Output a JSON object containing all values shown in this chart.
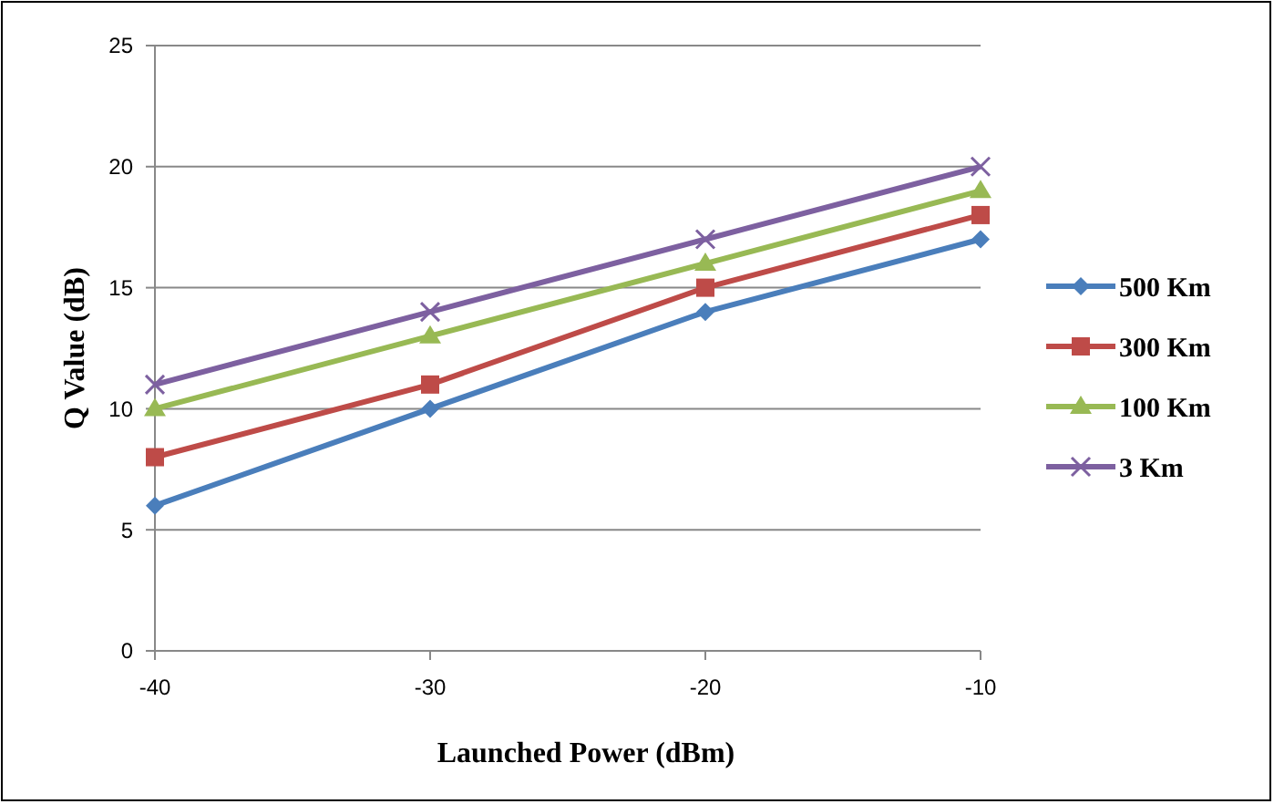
{
  "chart_data": {
    "type": "line",
    "xlabel": "Launched Power (dBm)",
    "ylabel": "Q Value (dB)",
    "x": [
      -40,
      -30,
      -20,
      -10
    ],
    "xlim": [
      -40,
      -10
    ],
    "xticks": [
      -40,
      -30,
      -20,
      -10
    ],
    "ylim": [
      0,
      25
    ],
    "yticks": [
      0,
      5,
      10,
      15,
      20,
      25
    ],
    "grid": "y",
    "legend": "right",
    "series": [
      {
        "name": "500 Km",
        "color": "#4a7ebb",
        "marker": "diamond",
        "values": [
          6,
          10,
          14,
          17
        ]
      },
      {
        "name": "300 Km",
        "color": "#be4b48",
        "marker": "square",
        "values": [
          8,
          11,
          15,
          18
        ]
      },
      {
        "name": "100 Km",
        "color": "#98b954",
        "marker": "triangle",
        "values": [
          10,
          13,
          16,
          19
        ]
      },
      {
        "name": "3 Km",
        "color": "#7d60a0",
        "marker": "cross",
        "values": [
          11,
          14,
          17,
          20
        ]
      }
    ]
  }
}
